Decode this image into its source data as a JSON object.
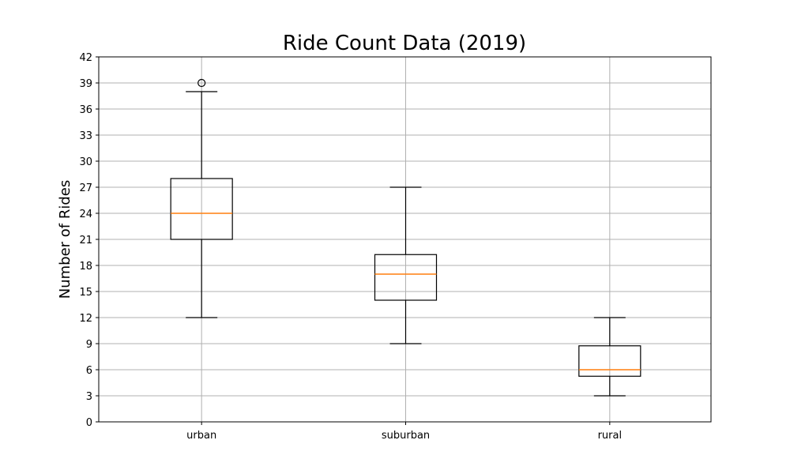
{
  "chart_data": {
    "type": "box",
    "title": "Ride Count Data (2019)",
    "xlabel": "",
    "ylabel": "Number of Rides",
    "categories": [
      "urban",
      "suburban",
      "rural"
    ],
    "boxes": [
      {
        "category": "urban",
        "whislo": 12,
        "q1": 21,
        "med": 24,
        "q3": 28,
        "whishi": 38,
        "fliers": [
          39
        ]
      },
      {
        "category": "suburban",
        "whislo": 9,
        "q1": 14,
        "med": 17,
        "q3": 19.25,
        "whishi": 27,
        "fliers": []
      },
      {
        "category": "rural",
        "whislo": 3,
        "q1": 5.25,
        "med": 6,
        "q3": 8.75,
        "whishi": 12,
        "fliers": []
      }
    ],
    "ylim": [
      0,
      42
    ],
    "yticks": [
      0,
      3,
      6,
      9,
      12,
      15,
      18,
      21,
      24,
      27,
      30,
      33,
      36,
      39,
      42
    ],
    "grid": true,
    "colors": {
      "median": "#ff7f0e",
      "box": "#000000",
      "grid": "#b0b0b0"
    }
  }
}
